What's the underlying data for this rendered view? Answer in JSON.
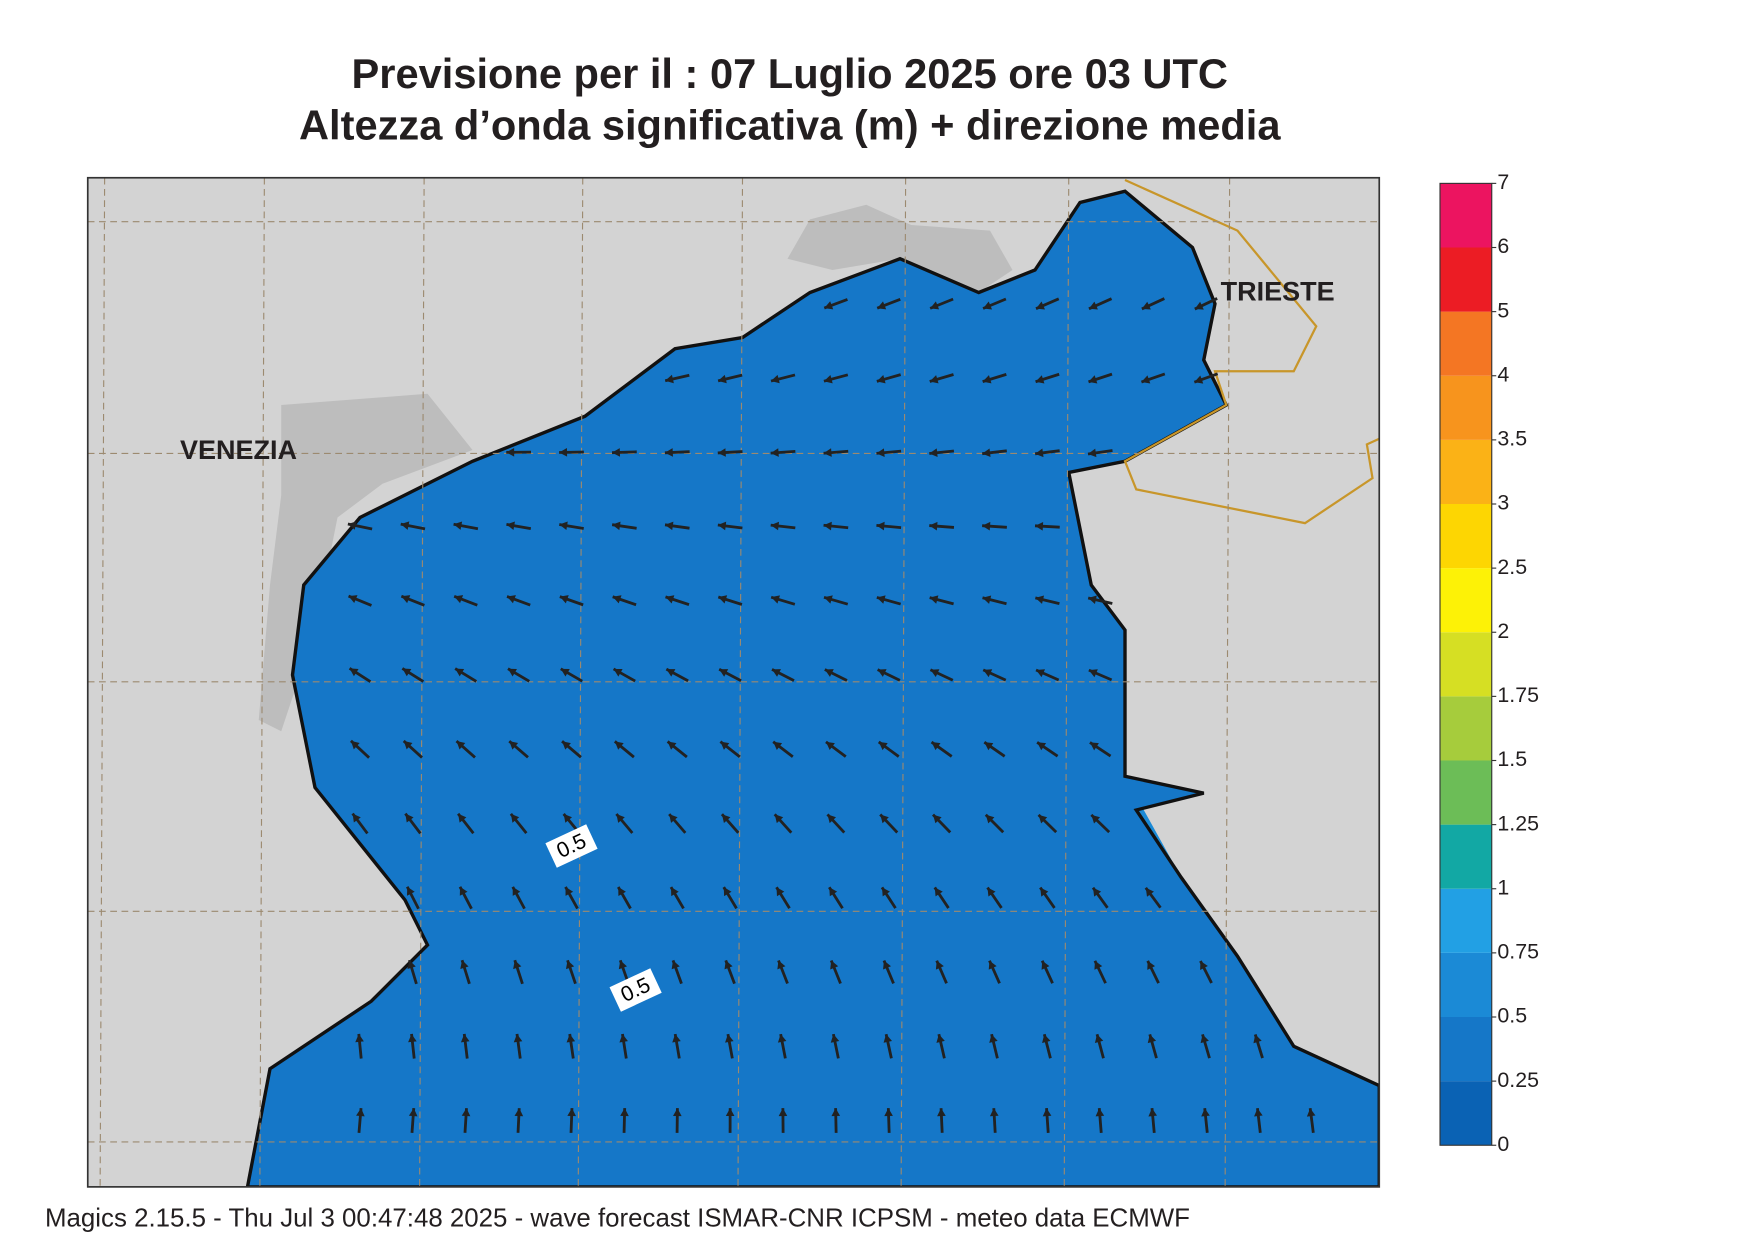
{
  "header": {
    "title_line1": "Previsione per il  :  07  Luglio   2025   ore 03 UTC",
    "title_line2": "Altezza d’onda significativa (m) + direzione media"
  },
  "map": {
    "places": [
      "VENEZIA",
      "TRIESTE"
    ],
    "contour_labels": [
      0.5,
      0.5
    ]
  },
  "colorbar": {
    "levels": [
      0,
      0.25,
      0.5,
      0.75,
      1,
      1.25,
      1.5,
      1.75,
      2,
      2.5,
      3,
      3.5,
      4,
      5,
      6,
      7
    ],
    "colors": [
      "#0a62b4",
      "#1577c8",
      "#1b8ad6",
      "#22a0e4",
      "#12a8a4",
      "#6cbd57",
      "#a6cc3c",
      "#d6df23",
      "#fdf206",
      "#fdd602",
      "#fbb216",
      "#f7941d",
      "#f47623",
      "#ec1c24",
      "#ec1460"
    ]
  },
  "footer": "Magics 2.15.5 - Thu Jul  3 00:47:48 2025 - wave forecast  ISMAR-CNR  ICPSM - meteo data   ECMWF"
}
